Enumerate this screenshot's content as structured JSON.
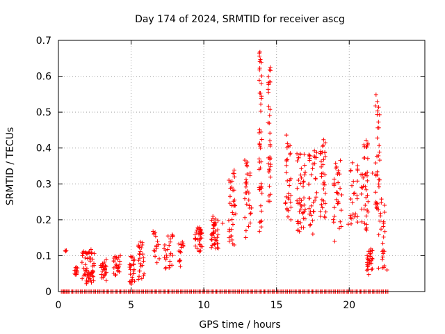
{
  "chart_data": {
    "type": "scatter",
    "title": "Day 174 of 2024, SRMTID for receiver ascg",
    "xlabel": "GPS time / hours",
    "ylabel": "SRMTID / TECUs",
    "xlim": [
      0,
      25.2
    ],
    "ylim": [
      0,
      0.7
    ],
    "xticks": [
      0,
      5,
      10,
      15,
      20
    ],
    "yticks": [
      0,
      0.1,
      0.2,
      0.3,
      0.4,
      0.5,
      0.6,
      0.7
    ],
    "xtick_labels": [
      "0",
      "5",
      "10",
      "15",
      "20"
    ],
    "ytick_labels": [
      "0",
      "0.1",
      "0.2",
      "0.3",
      "0.4",
      "0.5",
      "0.6",
      "0.7"
    ],
    "grid": true,
    "marker": "+",
    "color": "#ff0000",
    "clusters": [
      {
        "x": [
          0.45,
          0.55
        ],
        "y": [
          0.11,
          0.14
        ],
        "n": 3
      },
      {
        "x": [
          1.05,
          1.35
        ],
        "y": [
          0.045,
          0.07
        ],
        "n": 12
      },
      {
        "x": [
          1.6,
          2.5
        ],
        "y": [
          0.02,
          0.12
        ],
        "n": 60
      },
      {
        "x": [
          2.9,
          3.3
        ],
        "y": [
          0.03,
          0.09
        ],
        "n": 25
      },
      {
        "x": [
          3.8,
          4.3
        ],
        "y": [
          0.03,
          0.1
        ],
        "n": 25
      },
      {
        "x": [
          4.9,
          5.3
        ],
        "y": [
          0.02,
          0.11
        ],
        "n": 25
      },
      {
        "x": [
          5.5,
          5.9
        ],
        "y": [
          0.03,
          0.14
        ],
        "n": 25
      },
      {
        "x": [
          6.5,
          6.95
        ],
        "y": [
          0.08,
          0.17
        ],
        "n": 15
      },
      {
        "x": [
          7.2,
          7.9
        ],
        "y": [
          0.06,
          0.16
        ],
        "n": 25
      },
      {
        "x": [
          8.2,
          8.6
        ],
        "y": [
          0.07,
          0.14
        ],
        "n": 15
      },
      {
        "x": [
          9.4,
          9.9
        ],
        "y": [
          0.11,
          0.18
        ],
        "n": 35
      },
      {
        "x": [
          10.5,
          11.0
        ],
        "y": [
          0.12,
          0.21
        ],
        "n": 40
      },
      {
        "x": [
          11.7,
          12.2
        ],
        "y": [
          0.11,
          0.36
        ],
        "n": 35
      },
      {
        "x": [
          12.8,
          13.3
        ],
        "y": [
          0.15,
          0.38
        ],
        "n": 30
      },
      {
        "x": [
          13.8,
          14.0
        ],
        "y": [
          0.16,
          0.68
        ],
        "n": 45
      },
      {
        "x": [
          14.4,
          14.6
        ],
        "y": [
          0.24,
          0.63
        ],
        "n": 35
      },
      {
        "x": [
          15.6,
          16.0
        ],
        "y": [
          0.2,
          0.44
        ],
        "n": 30
      },
      {
        "x": [
          16.4,
          17.0
        ],
        "y": [
          0.16,
          0.4
        ],
        "n": 45
      },
      {
        "x": [
          17.2,
          17.8
        ],
        "y": [
          0.16,
          0.4
        ],
        "n": 35
      },
      {
        "x": [
          18.0,
          18.4
        ],
        "y": [
          0.2,
          0.43
        ],
        "n": 35
      },
      {
        "x": [
          18.9,
          19.5
        ],
        "y": [
          0.17,
          0.38
        ],
        "n": 30
      },
      {
        "x": [
          19.9,
          20.6
        ],
        "y": [
          0.18,
          0.36
        ],
        "n": 25
      },
      {
        "x": [
          20.8,
          21.3
        ],
        "y": [
          0.17,
          0.43
        ],
        "n": 40
      },
      {
        "x": [
          21.2,
          21.6
        ],
        "y": [
          0.04,
          0.12
        ],
        "n": 30
      },
      {
        "x": [
          21.8,
          22.1
        ],
        "y": [
          0.22,
          0.55
        ],
        "n": 35
      },
      {
        "x": [
          22.0,
          22.5
        ],
        "y": [
          0.06,
          0.26
        ],
        "n": 25
      }
    ],
    "isolated_points": [
      {
        "x": 11.3,
        "y": 0.19
      },
      {
        "x": 19.0,
        "y": 0.14
      },
      {
        "x": 21.6,
        "y": 0.33
      },
      {
        "x": 22.6,
        "y": 0.06
      }
    ],
    "zero_level_hours": [
      0.2,
      0.4,
      0.6,
      0.9,
      1.2,
      1.5,
      1.8,
      2.1,
      2.4,
      2.7,
      3.0,
      3.3,
      3.6,
      3.9,
      4.2,
      4.5,
      4.8,
      5.1,
      5.4,
      5.7,
      6.0,
      6.3,
      6.6,
      6.9,
      7.2,
      7.5,
      7.8,
      8.1,
      8.4,
      8.7,
      9.0,
      9.3,
      9.6,
      9.9,
      10.2,
      10.5,
      10.8,
      11.1,
      11.4,
      11.7,
      12.0,
      12.3,
      12.6,
      12.9,
      13.2,
      13.5,
      13.8,
      14.1,
      14.4,
      14.7,
      15.0,
      15.3,
      15.6,
      15.9,
      16.2,
      16.5,
      16.8,
      17.1,
      17.4,
      17.7,
      18.0,
      18.3,
      18.6,
      18.9,
      19.2,
      19.5,
      19.8,
      20.1,
      20.4,
      20.7,
      21.0,
      21.3,
      21.6,
      21.9,
      22.2,
      22.5
    ]
  }
}
